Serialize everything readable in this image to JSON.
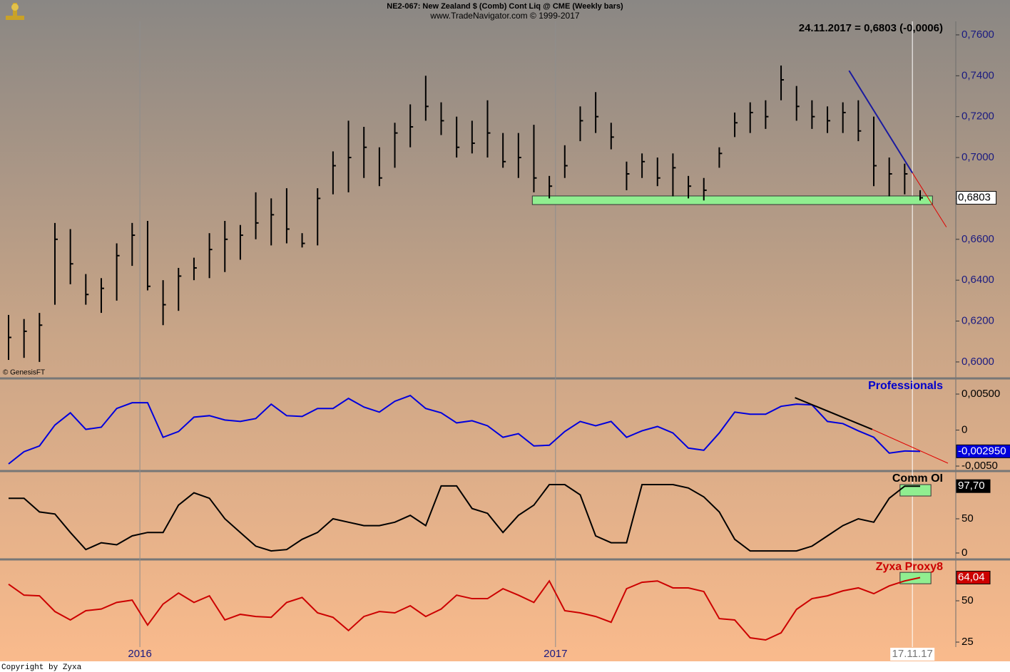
{
  "chart_data": [
    {
      "type": "hlc",
      "title": "NE2-067:  New Zealand $ (Comb) Cont Liq @ CME  (Weekly bars)",
      "subtitle": "www.TradeNavigator.com © 1999-2017",
      "annotation": "24.11.2017 = 0,6803 (-0,0006)",
      "source": "© GenesisFT",
      "footer": "Copyright by Zyxa",
      "color": "#000000",
      "high": [
        0.623,
        0.621,
        0.624,
        0.668,
        0.665,
        0.643,
        0.641,
        0.658,
        0.668,
        0.669,
        0.64,
        0.646,
        0.651,
        0.663,
        0.669,
        0.667,
        0.683,
        0.68,
        0.685,
        0.663,
        0.685,
        0.703,
        0.718,
        0.715,
        0.705,
        0.717,
        0.726,
        0.74,
        0.727,
        0.72,
        0.718,
        0.728,
        0.712,
        0.712,
        0.716,
        0.691,
        0.706,
        0.725,
        0.732,
        0.717,
        0.698,
        0.702,
        0.7,
        0.702,
        0.691,
        0.69,
        0.705,
        0.722,
        0.727,
        0.728,
        0.745,
        0.735,
        0.728,
        0.725,
        0.727,
        0.728,
        0.72,
        0.7,
        0.697,
        0.684
      ],
      "low": [
        0.601,
        0.602,
        0.6,
        0.628,
        0.638,
        0.628,
        0.624,
        0.63,
        0.647,
        0.635,
        0.618,
        0.625,
        0.64,
        0.641,
        0.644,
        0.65,
        0.66,
        0.657,
        0.658,
        0.656,
        0.657,
        0.682,
        0.683,
        0.69,
        0.686,
        0.695,
        0.705,
        0.718,
        0.711,
        0.7,
        0.702,
        0.7,
        0.695,
        0.69,
        0.683,
        0.68,
        0.69,
        0.708,
        0.712,
        0.704,
        0.684,
        0.69,
        0.686,
        0.681,
        0.68,
        0.679,
        0.695,
        0.71,
        0.712,
        0.714,
        0.728,
        0.718,
        0.714,
        0.712,
        0.712,
        0.708,
        0.686,
        0.681,
        0.682,
        0.679
      ],
      "close": [
        0.612,
        0.615,
        0.618,
        0.66,
        0.648,
        0.633,
        0.636,
        0.652,
        0.662,
        0.637,
        0.628,
        0.642,
        0.646,
        0.655,
        0.66,
        0.662,
        0.668,
        0.672,
        0.665,
        0.658,
        0.68,
        0.696,
        0.7,
        0.705,
        0.69,
        0.712,
        0.715,
        0.725,
        0.718,
        0.705,
        0.707,
        0.712,
        0.698,
        0.7,
        0.69,
        0.686,
        0.696,
        0.718,
        0.72,
        0.71,
        0.692,
        0.698,
        0.69,
        0.695,
        0.686,
        0.684,
        0.702,
        0.717,
        0.722,
        0.72,
        0.738,
        0.725,
        0.72,
        0.718,
        0.722,
        0.713,
        0.696,
        0.692,
        0.692,
        0.6803
      ],
      "last_label": "0,6803",
      "label_color": "#000000",
      "label_bg": "#ffffff",
      "ylim": [
        0.5923,
        0.7666
      ],
      "yticks": [
        {
          "value": 0.6,
          "label": "0,6000"
        },
        {
          "value": 0.62,
          "label": "0,6200"
        },
        {
          "value": 0.64,
          "label": "0,6400"
        },
        {
          "value": 0.66,
          "label": "0,6600"
        },
        {
          "value": 0.68,
          "label": "0,6800"
        },
        {
          "value": 0.7,
          "label": "0,7000"
        },
        {
          "value": 0.72,
          "label": "0,7200"
        },
        {
          "value": 0.74,
          "label": "0,7400"
        },
        {
          "value": 0.76,
          "label": "0,7600"
        }
      ],
      "tick_color": "#1a1a80",
      "xticks": [
        {
          "value": 8.5,
          "label": "2016"
        },
        {
          "value": 35.4,
          "label": "2017"
        },
        {
          "value": 58.5,
          "label": "17.11.17"
        }
      ],
      "zone": {
        "x": [
          33.9,
          59.8
        ],
        "y": [
          0.677,
          0.6812
        ],
        "color": "#90ee90"
      },
      "trendline": {
        "x": [
          54.4,
          58.5,
          60.7
        ],
        "y": [
          0.7425,
          0.6925,
          0.666
        ],
        "color": "#1a1aa0",
        "extension_color": "#e00000"
      }
    },
    {
      "type": "line",
      "title": "Professionals",
      "title_color": "#0000cc",
      "color": "#0000dd",
      "values": [
        -0.0047,
        -0.003,
        -0.0022,
        0.0007,
        0.0024,
        0.0001,
        0.0004,
        0.003,
        0.0038,
        0.0038,
        -0.001,
        -0.0002,
        0.0018,
        0.002,
        0.0014,
        0.0012,
        0.0016,
        0.0036,
        0.002,
        0.0019,
        0.003,
        0.003,
        0.0044,
        0.0032,
        0.0025,
        0.004,
        0.0048,
        0.003,
        0.0024,
        0.001,
        0.0013,
        0.0006,
        -0.001,
        -0.0005,
        -0.0022,
        -0.0021,
        -0.0002,
        0.0012,
        0.0006,
        0.0012,
        -0.001,
        -0.0001,
        0.0005,
        -0.0004,
        -0.0025,
        -0.0028,
        -0.0004,
        0.0025,
        0.0022,
        0.0022,
        0.0033,
        0.0036,
        0.0035,
        0.0012,
        0.0009,
        -0.0001,
        -0.001,
        -0.0032,
        -0.0029,
        -0.00295
      ],
      "last_label": "-0,002950",
      "label_color": "#ffffff",
      "label_bg": "#0000dd",
      "ylim": [
        -0.00559,
        0.00708
      ],
      "yticks": [
        {
          "value": -0.005,
          "label": "-0,0050"
        },
        0,
        {
          "value": 0.005,
          "label": "0,00500"
        }
      ],
      "tick_color": "#000000",
      "trendline": {
        "x": [
          50.9,
          55.9,
          60.8
        ],
        "y": [
          0.0045,
          0.0001,
          -0.0046
        ],
        "color": "#000000",
        "extension_color": "#e00000"
      }
    },
    {
      "type": "line",
      "title": "Comm OI",
      "title_color": "#000000",
      "color": "#000000",
      "values": [
        80,
        80,
        60,
        57,
        30,
        5,
        15,
        12,
        25,
        30,
        30,
        70,
        88,
        80,
        50,
        30,
        10,
        3,
        5,
        20,
        30,
        50,
        45,
        40,
        40,
        45,
        55,
        40,
        98,
        98,
        65,
        58,
        30,
        55,
        70,
        100,
        100,
        85,
        25,
        15,
        15,
        100,
        100,
        100,
        95,
        82,
        60,
        20,
        3,
        3,
        3,
        3,
        10,
        25,
        40,
        50,
        45,
        80,
        97.7,
        97.7
      ],
      "last_label": "97,70",
      "label_color": "#ffffff",
      "label_bg": "#000000",
      "ylim": [
        -7.3,
        118.75
      ],
      "yticks": [
        0,
        50
      ],
      "tick_color": "#000000",
      "zone": {
        "x": [
          57.7,
          59.7
        ],
        "y": [
          83.3,
          100
        ],
        "color": "#90ee90"
      }
    },
    {
      "type": "line",
      "title": "Zyxa Proxy8",
      "title_color": "#cc0000",
      "color": "#cc0000",
      "values": [
        60,
        53.4,
        53,
        43.5,
        38.4,
        44,
        45,
        49,
        50.4,
        35.3,
        48,
        54.7,
        49,
        53,
        38.4,
        41.8,
        40.5,
        40,
        49,
        52,
        42.7,
        40,
        32,
        40.5,
        43.5,
        42.7,
        47,
        40.5,
        45,
        53.4,
        51.3,
        51.3,
        57.3,
        53.4,
        49,
        62,
        44,
        42.7,
        40.5,
        37,
        57.3,
        61.2,
        62,
        57.8,
        57.8,
        55.6,
        39.2,
        38.4,
        27.6,
        26.3,
        30.6,
        44.8,
        51.3,
        53,
        56,
        57.8,
        54.3,
        59,
        62,
        64.04
      ],
      "last_label": "64,04",
      "label_color": "#ffffff",
      "label_bg": "#cc0000",
      "ylim": [
        22,
        74.6
      ],
      "yticks": [
        25,
        50
      ],
      "tick_color": "#000000",
      "zone": {
        "x": [
          57.7,
          59.7
        ],
        "y": [
          60.3,
          67.2
        ],
        "color": "#90ee90"
      }
    }
  ]
}
